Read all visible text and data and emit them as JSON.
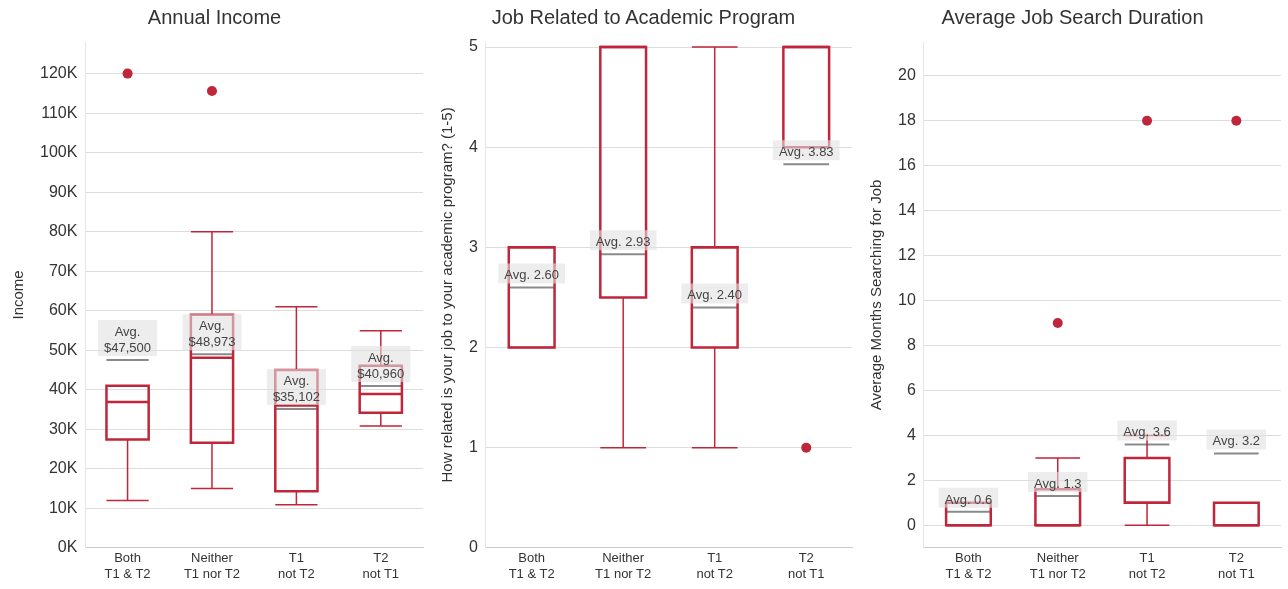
{
  "chart_data": [
    {
      "type": "box",
      "title": "Annual Income",
      "ylabel": "Income",
      "categories": [
        "Both T1 & T2",
        "Neither T1 nor T2",
        "T1 not T2",
        "T2 not T1"
      ],
      "series": [
        {
          "color": "#c0263a",
          "boxes": [
            {
              "low": 12000,
              "q1": 27400,
              "median": 36900,
              "q3": 41000,
              "high": 41000,
              "mean": 47500,
              "outliers": [
                120000
              ]
            },
            {
              "low": 15000,
              "q1": 26600,
              "median": 48100,
              "q3": 59000,
              "high": 80000,
              "mean": 48973,
              "outliers": [
                115600
              ]
            },
            {
              "low": 10900,
              "q1": 14300,
              "median": 36000,
              "q3": 45000,
              "high": 61000,
              "mean": 35102
            },
            {
              "low": 30800,
              "q1": 34200,
              "median": 38900,
              "q3": 46100,
              "high": 54900,
              "mean": 40960
            }
          ]
        }
      ],
      "ylim": [
        0,
        128000
      ],
      "yticks": [
        {
          "value": 0,
          "label": "0K"
        },
        {
          "value": 10000,
          "label": "10K"
        },
        {
          "value": 20000,
          "label": "20K"
        },
        {
          "value": 30000,
          "label": "30K"
        },
        {
          "value": 40000,
          "label": "40K"
        },
        {
          "value": 50000,
          "label": "50K"
        },
        {
          "value": 60000,
          "label": "60K"
        },
        {
          "value": 70000,
          "label": "70K"
        },
        {
          "value": 80000,
          "label": "80K"
        },
        {
          "value": 90000,
          "label": "90K"
        },
        {
          "value": 100000,
          "label": "100K"
        },
        {
          "value": 110000,
          "label": "110K"
        },
        {
          "value": 120000,
          "label": "120K"
        }
      ],
      "grid": "y",
      "annotations": [
        "Avg. $47,500",
        "Avg. $48,973",
        "Avg. $35,102",
        "Avg. $40,960"
      ]
    },
    {
      "type": "box",
      "title": "Job Related to Academic Program",
      "ylabel": "How related is your job to your academic program? (1-5)",
      "categories": [
        "Both T1 & T2",
        "Neither T1 nor T2",
        "T1 not T2",
        "T2 not T1"
      ],
      "series": [
        {
          "color": "#c0263a",
          "boxes": [
            {
              "low": 2,
              "q1": 2,
              "median": 3,
              "q3": 3,
              "high": 3,
              "mean": 2.6
            },
            {
              "low": 1,
              "q1": 2.5,
              "median": 5,
              "q3": 5,
              "high": 5,
              "mean": 2.93
            },
            {
              "low": 1,
              "q1": 2,
              "median": 3,
              "q3": 3,
              "high": 5,
              "mean": 2.4
            },
            {
              "low": 4,
              "q1": 4,
              "median": 5,
              "q3": 5,
              "high": 5,
              "mean": 3.83,
              "outliers": [
                1
              ]
            }
          ]
        }
      ],
      "ylim": [
        0,
        5.05
      ],
      "yticks": [
        0,
        1,
        2,
        3,
        4,
        5
      ],
      "grid": "y",
      "annotations": [
        "Avg. 2.60",
        "Avg. 2.93",
        "Avg. 2.40",
        "Avg. 3.83"
      ]
    },
    {
      "type": "box",
      "title": "Average Job Search Duration",
      "ylabel": "Average Months Searching for Job",
      "categories": [
        "Both T1 & T2",
        "Neither T1 nor T2",
        "T1 not T2",
        "T2 not T1"
      ],
      "series": [
        {
          "color": "#c0263a",
          "boxes": [
            {
              "low": 0,
              "q1": 0,
              "median": 0,
              "q3": 1,
              "high": 1,
              "mean": 0.6
            },
            {
              "low": 0,
              "q1": 0,
              "median": 0,
              "q3": 1.6,
              "high": 3,
              "mean": 1.3,
              "outliers": [
                9
              ]
            },
            {
              "low": 0,
              "q1": 1,
              "median": 1,
              "q3": 3,
              "high": 4,
              "mean": 3.6,
              "outliers": [
                18
              ]
            },
            {
              "low": 0,
              "q1": 0,
              "median": 0,
              "q3": 1,
              "high": 1,
              "mean": 3.2,
              "outliers": [
                18
              ]
            }
          ]
        }
      ],
      "ylim": [
        -1,
        21.5
      ],
      "yticks": [
        0,
        2,
        4,
        6,
        8,
        10,
        12,
        14,
        16,
        18,
        20
      ],
      "grid": "y",
      "annotations": [
        "Avg. 0.6",
        "Avg. 1.3",
        "Avg. 3.6",
        "Avg. 3.2"
      ]
    }
  ]
}
